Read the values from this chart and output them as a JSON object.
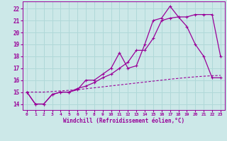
{
  "xlabel": "Windchill (Refroidissement éolien,°C)",
  "xlim": [
    -0.5,
    23.5
  ],
  "ylim": [
    13.5,
    22.6
  ],
  "yticks": [
    14,
    15,
    16,
    17,
    18,
    19,
    20,
    21,
    22
  ],
  "xticks": [
    0,
    1,
    2,
    3,
    4,
    5,
    6,
    7,
    8,
    9,
    10,
    11,
    12,
    13,
    14,
    15,
    16,
    17,
    18,
    19,
    20,
    21,
    22,
    23
  ],
  "bg_color": "#cce8e8",
  "grid_color": "#b0d8d8",
  "line_color": "#990099",
  "line1_x": [
    0,
    1,
    2,
    3,
    4,
    5,
    6,
    7,
    8,
    9,
    10,
    11,
    12,
    13,
    14,
    15,
    16,
    17,
    18,
    19,
    20,
    21,
    22,
    23
  ],
  "line1_y": [
    15.0,
    14.0,
    14.0,
    14.8,
    15.0,
    15.0,
    15.2,
    16.0,
    16.0,
    16.5,
    17.0,
    18.3,
    17.0,
    17.2,
    19.0,
    21.0,
    21.2,
    22.2,
    21.3,
    20.5,
    19.0,
    18.0,
    16.2,
    16.2
  ],
  "line2_x": [
    0,
    1,
    2,
    3,
    4,
    5,
    6,
    7,
    8,
    9,
    10,
    11,
    12,
    13,
    14,
    15,
    16,
    17,
    18,
    19,
    20,
    21,
    22,
    23
  ],
  "line2_y": [
    15.0,
    14.0,
    14.0,
    14.8,
    15.0,
    15.0,
    15.3,
    15.5,
    15.8,
    16.2,
    16.5,
    17.0,
    17.5,
    18.5,
    18.5,
    19.5,
    21.0,
    21.2,
    21.3,
    21.3,
    21.5,
    21.5,
    21.5,
    18.0
  ],
  "line3_x": [
    0,
    1,
    2,
    3,
    4,
    5,
    6,
    7,
    8,
    9,
    10,
    11,
    12,
    13,
    14,
    15,
    16,
    17,
    18,
    19,
    20,
    21,
    22,
    23
  ],
  "line3_y": [
    15.0,
    15.0,
    15.0,
    15.05,
    15.1,
    15.15,
    15.2,
    15.28,
    15.36,
    15.44,
    15.52,
    15.6,
    15.68,
    15.76,
    15.84,
    15.92,
    16.0,
    16.08,
    16.15,
    16.22,
    16.28,
    16.33,
    16.37,
    16.4
  ]
}
